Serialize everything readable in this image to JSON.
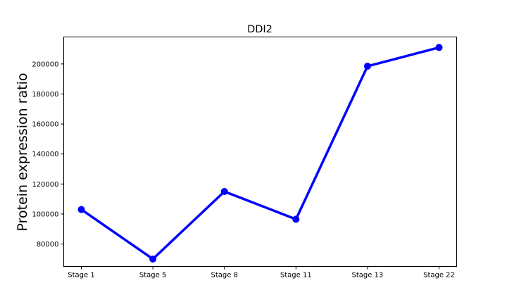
{
  "chart_data": {
    "type": "line",
    "title": "DDI2",
    "xlabel": "",
    "ylabel": "Protein expression ratio",
    "categories": [
      "Stage 1",
      "Stage 5",
      "Stage 8",
      "Stage 11",
      "Stage 13",
      "Stage 22"
    ],
    "series": [
      {
        "values": [
          103000,
          70000,
          115000,
          96500,
          198500,
          211000
        ],
        "color": "#0000ff"
      }
    ],
    "yticks": [
      80000,
      100000,
      120000,
      140000,
      160000,
      180000,
      200000
    ],
    "ylim": [
      65000,
      218000
    ],
    "grid": false,
    "legend": "none",
    "marker": "circle"
  }
}
